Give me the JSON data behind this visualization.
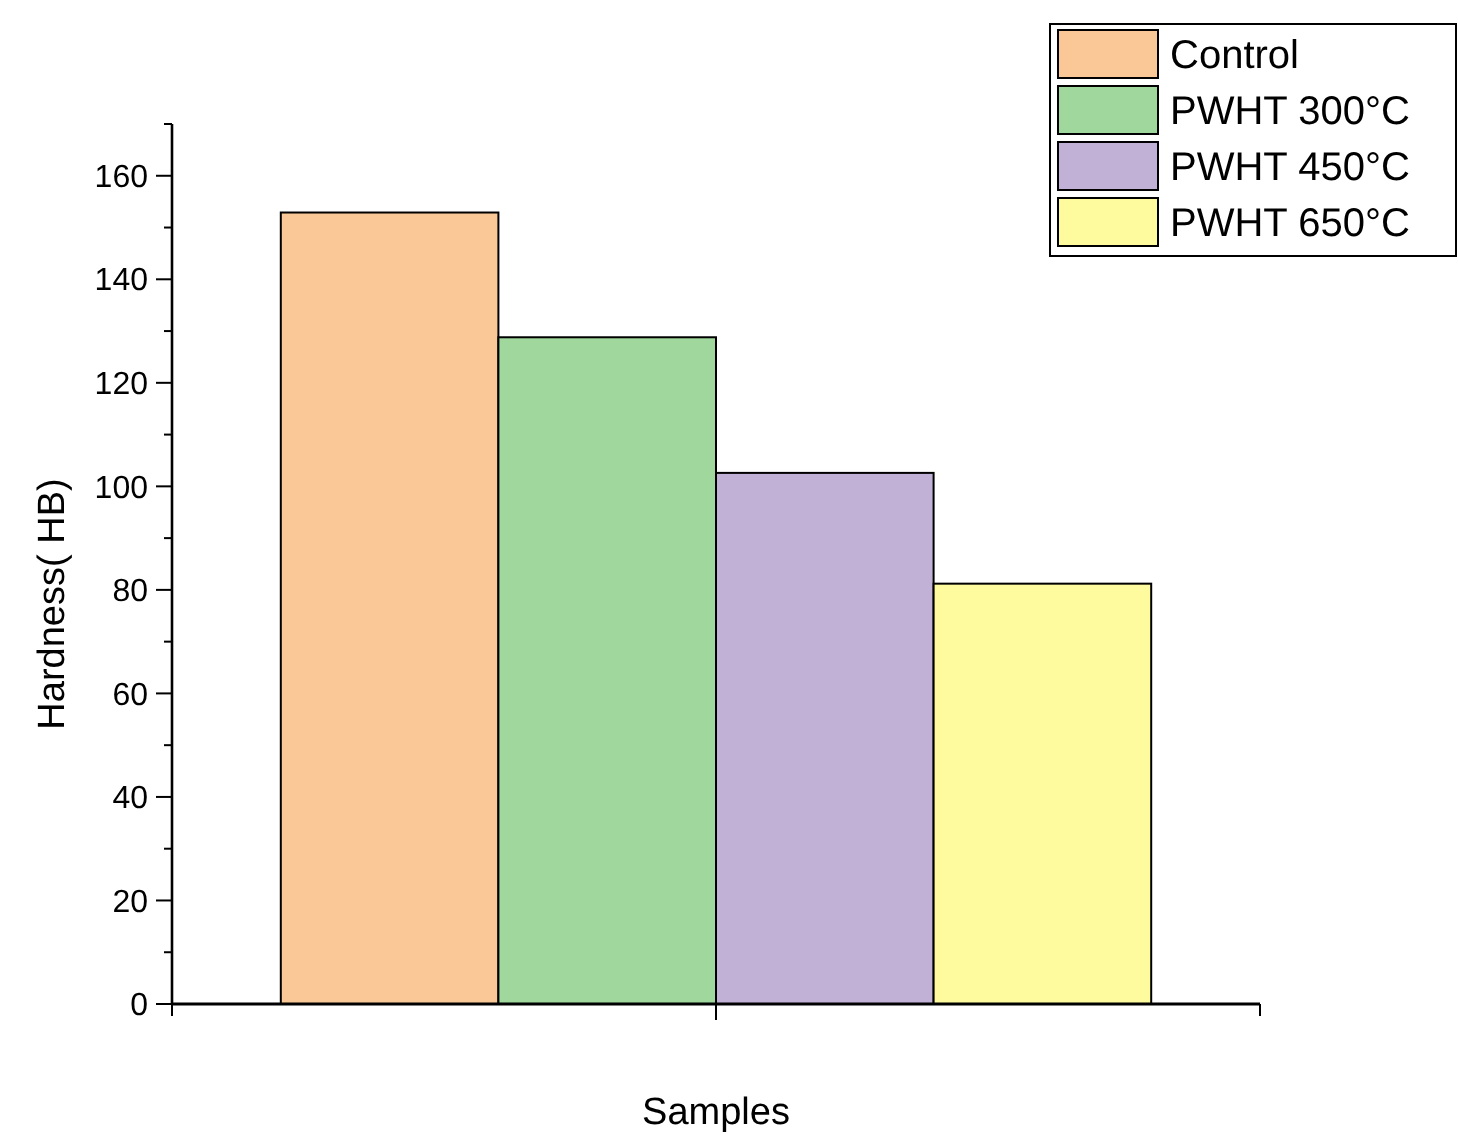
{
  "chart_data": {
    "type": "bar",
    "xlabel": "Samples",
    "ylabel": "Hardness( HB)",
    "categories": [
      null
    ],
    "series": [
      {
        "name": "Control",
        "color": "#f9c896",
        "values": [
          152.9
        ]
      },
      {
        "name": "PWHT 300°C",
        "color": "#9fd79c",
        "values": [
          128.8
        ]
      },
      {
        "name": "PWHT 450°C",
        "color": "#c2b1d6",
        "values": [
          102.6
        ]
      },
      {
        "name": "PWHT 650°C",
        "color": "#fdfb9d",
        "values": [
          81.2
        ]
      }
    ],
    "ylim": [
      0,
      170
    ],
    "yticks": [
      0,
      {
        "value": 10,
        "label": null
      },
      20,
      {
        "value": 30,
        "label": null
      },
      40,
      {
        "value": 50,
        "label": null
      },
      60,
      {
        "value": 70,
        "label": null
      },
      80,
      {
        "value": 90,
        "label": null
      },
      100,
      {
        "value": 110,
        "label": null
      },
      120,
      {
        "value": 130,
        "label": null
      },
      140,
      {
        "value": 150,
        "label": null
      },
      160,
      {
        "value": 170,
        "label": null
      }
    ],
    "grid": false,
    "legend": "top right"
  }
}
